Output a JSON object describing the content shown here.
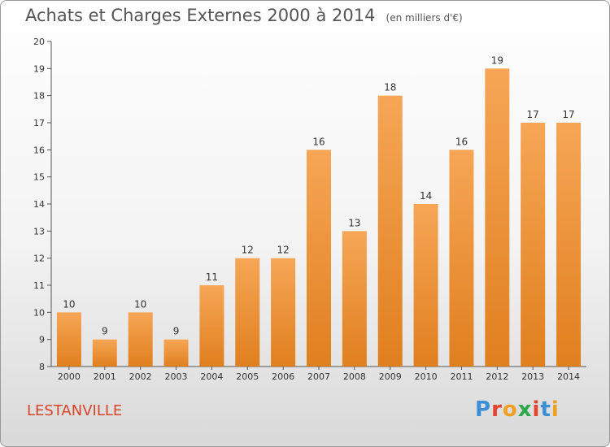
{
  "header": {
    "title": "Achats et Charges Externes 2000 à 2014",
    "unit": "(en milliers d'€)"
  },
  "footer": {
    "place": "LESTANVILLE",
    "logo": [
      "P",
      "r",
      "o",
      "x",
      "i",
      "t",
      "i"
    ]
  },
  "colors": {
    "bar_top": "#f6a656",
    "bar_bottom": "#e07f1e",
    "title": "#555555",
    "place": "#d9452b"
  },
  "chart_data": {
    "type": "bar",
    "title": "Achats et Charges Externes 2000 à 2014",
    "subtitle": "(en milliers d'€)",
    "categories": [
      "2000",
      "2001",
      "2002",
      "2003",
      "2004",
      "2005",
      "2006",
      "2007",
      "2008",
      "2009",
      "2010",
      "2011",
      "2012",
      "2013",
      "2014"
    ],
    "values": [
      10,
      9,
      10,
      9,
      11,
      12,
      12,
      16,
      13,
      18,
      14,
      16,
      19,
      17,
      17
    ],
    "value_labels": [
      "10",
      "9",
      "10",
      "9",
      "11",
      "12",
      "12",
      "16",
      "13",
      "18",
      "14",
      "16",
      "19",
      "17",
      "17"
    ],
    "ylim": [
      8,
      20
    ],
    "yticks": [
      "8",
      "9",
      "10",
      "11",
      "12",
      "13",
      "14",
      "15",
      "16",
      "17",
      "18",
      "19",
      "20"
    ],
    "xlabel": "",
    "ylabel": "",
    "grid": false,
    "legend": "none"
  }
}
